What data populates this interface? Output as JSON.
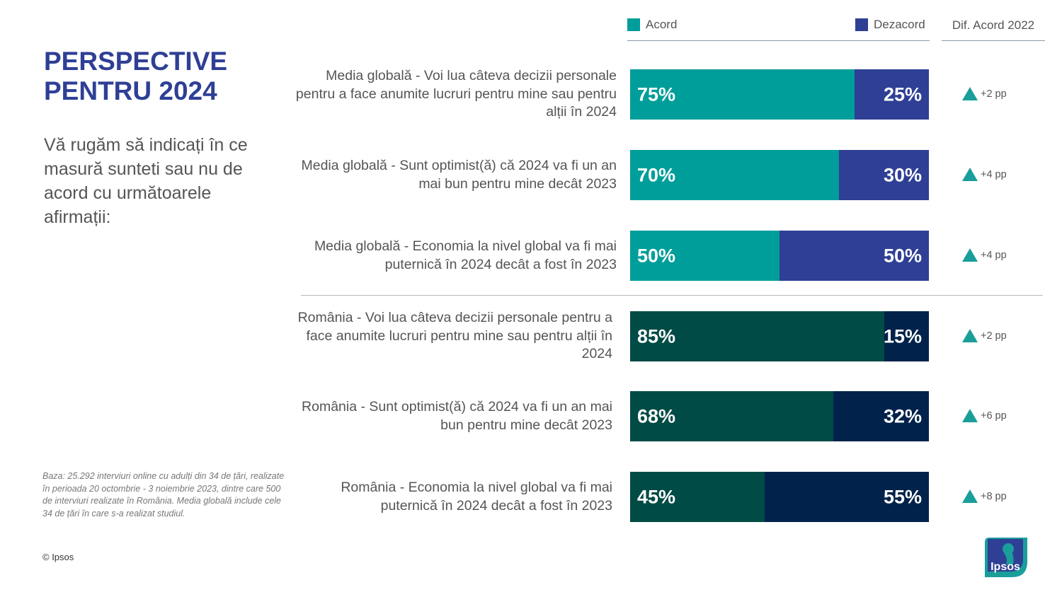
{
  "title": "PERSPECTIVE PENTRU 2024",
  "subtitle": "Vă rugăm să indicați în ce masură sunteti sau nu de acord cu următoarele afirmații:",
  "footnote": "Baza: 25.292 interviuri online cu adulți din 34 de țări, realizate în perioada 20 octombrie - 3 noiembrie 2023, dintre care 500 de interviuri realizate în România. Media globală include cele 34 de țări în care s-a realizat studiul.",
  "copyright": "© Ipsos",
  "logo_text": "Ipsos",
  "diff_header": "Dif. Acord 2022",
  "colors": {
    "title": "#2E3F95",
    "global_agree": "#009E9A",
    "global_disagree": "#2E3F95",
    "romania_agree": "#004B45",
    "romania_disagree": "#00224B",
    "up_arrow": "#1A9E9A"
  },
  "chart_data": {
    "type": "bar",
    "orientation": "horizontal",
    "stacked": true,
    "series_names": [
      "Acord",
      "Dezacord"
    ],
    "rows": [
      {
        "label": "Media globală - Voi lua câteva decizii personale pentru a face anumite lucruri pentru mine sau pentru alții în 2024",
        "group": "global",
        "agree": 75,
        "disagree": 25,
        "agree_label": "75%",
        "disagree_label": "25%",
        "diff_label": "+2 pp"
      },
      {
        "label": "Media globală - Sunt optimist(ă) că 2024 va fi un an mai bun pentru mine decât 2023",
        "group": "global",
        "agree": 70,
        "disagree": 30,
        "agree_label": "70%",
        "disagree_label": "30%",
        "diff_label": "+4 pp"
      },
      {
        "label": "Media globală - Economia la nivel global va fi mai puternică în 2024 decât a fost în 2023",
        "group": "global",
        "agree": 50,
        "disagree": 50,
        "agree_label": "50%",
        "disagree_label": "50%",
        "diff_label": "+4 pp"
      },
      {
        "label": "România - Voi lua câteva decizii personale pentru a face anumite lucruri pentru mine sau pentru alții în 2024",
        "group": "romania",
        "agree": 85,
        "disagree": 15,
        "agree_label": "85%",
        "disagree_label": "15%",
        "diff_label": "+2 pp"
      },
      {
        "label": "România - Sunt optimist(ă) că 2024 va fi un an mai bun pentru mine decât 2023",
        "group": "romania",
        "agree": 68,
        "disagree": 32,
        "agree_label": "68%",
        "disagree_label": "32%",
        "diff_label": "+6 pp"
      },
      {
        "label": "România - Economia la nivel global va fi mai puternică în 2024 decât a fost în 2023",
        "group": "romania",
        "agree": 45,
        "disagree": 55,
        "agree_label": "45%",
        "disagree_label": "55%",
        "diff_label": "+8 pp"
      }
    ]
  }
}
